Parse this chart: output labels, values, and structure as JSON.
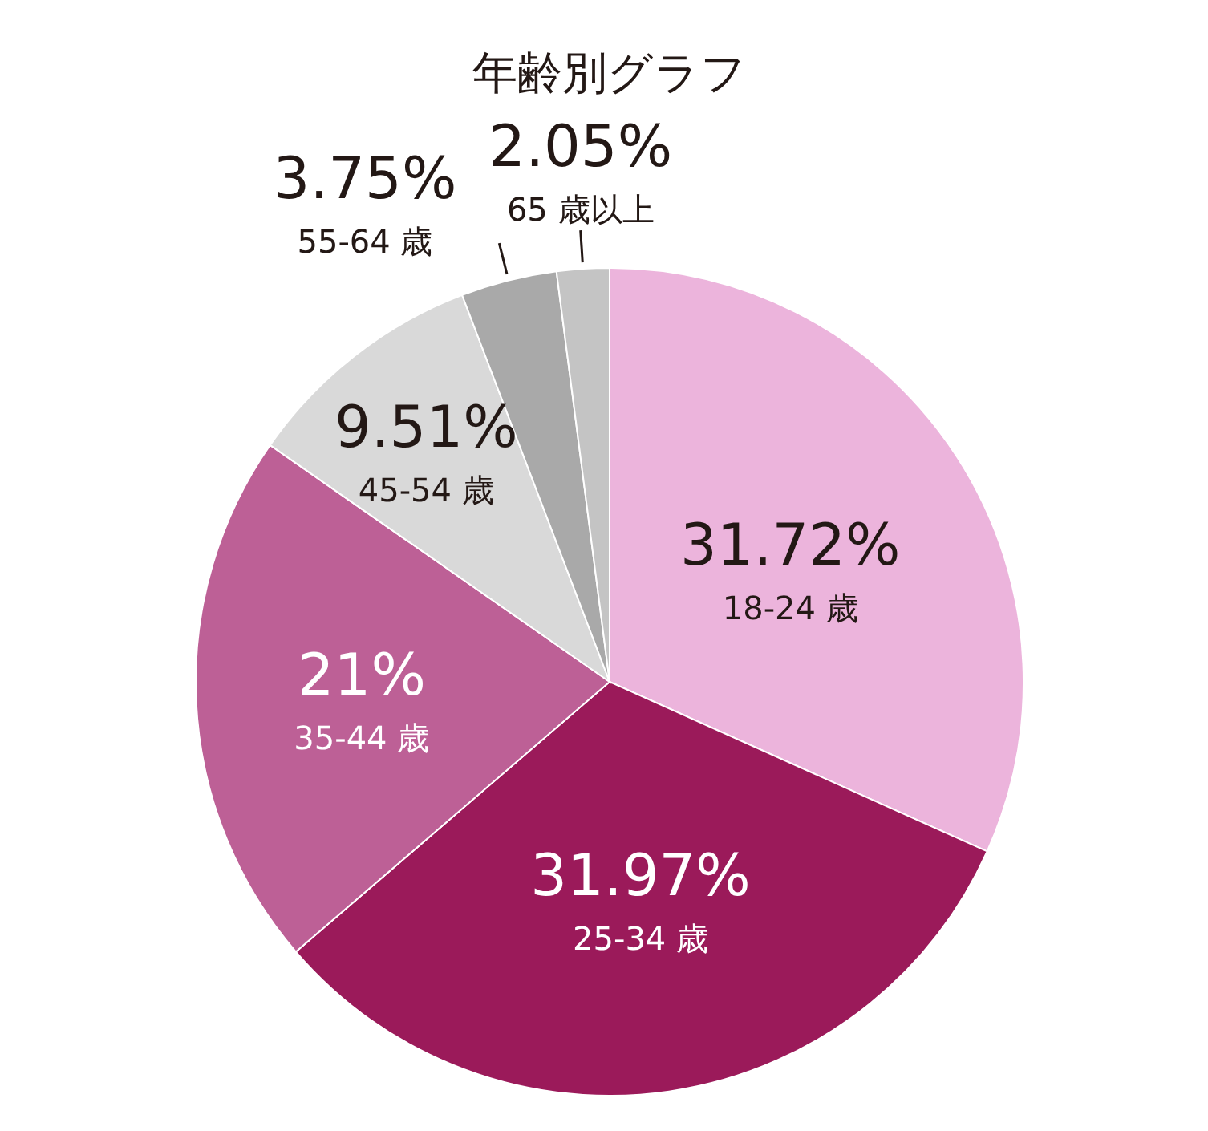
{
  "chart_data": {
    "type": "pie",
    "title": "年齢別グラフ",
    "categories": [
      "18-24 歳",
      "25-34 歳",
      "35-44 歳",
      "45-54 歳",
      "55-64 歳",
      "65 歳以上"
    ],
    "values": [
      31.72,
      31.97,
      21,
      9.51,
      3.75,
      2.05
    ],
    "value_labels": [
      "31.72%",
      "31.97%",
      "21%",
      "9.51%",
      "3.75%",
      "2.05%"
    ],
    "colors": [
      "#ecb4dc",
      "#9b1a5a",
      "#bd6096",
      "#d9d9d9",
      "#a9a9a9",
      "#c4c4c4"
    ]
  }
}
